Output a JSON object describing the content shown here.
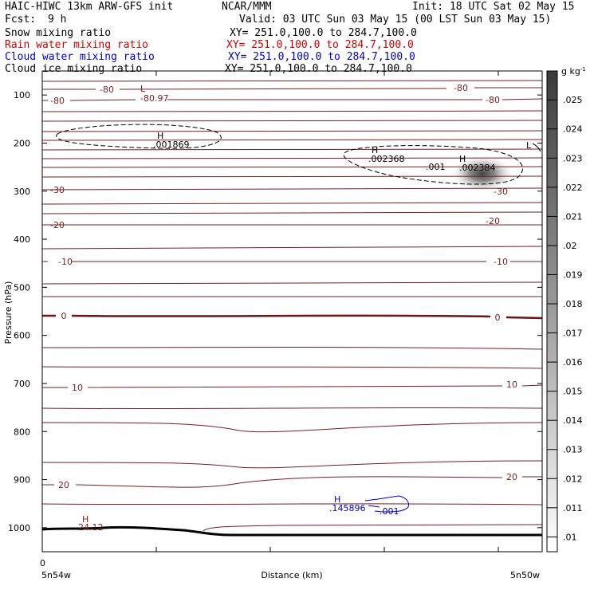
{
  "header": {
    "title_left": "HAIC-HIWC 13km ARW-GFS init",
    "title_mid": "NCAR/MMM",
    "init": "Init: 18 UTC Sat 02 May 15",
    "fcst_label": "Fcst:",
    "fcst_value": "9 h",
    "valid": "Valid: 03 UTC Sun 03 May 15 (00 LST Sun 03 May 15)",
    "fields": [
      {
        "name": "Snow mixing ratio",
        "xy": "XY= 251.0,100.0 to 284.7,100.0",
        "color": "#000000"
      },
      {
        "name": "Rain water mixing ratio",
        "xy": "XY= 251.0,100.0 to 284.7,100.0",
        "color": "#d00000"
      },
      {
        "name": "Cloud water mixing ratio",
        "xy": "XY= 251.0,100.0 to 284.7,100.0",
        "color": "#0000d0"
      },
      {
        "name": "Cloud ice mixing ratio",
        "xy": "XY= 251.0,100.0 to 284.7,100.0",
        "color": "#000000"
      }
    ]
  },
  "chart_data": {
    "type": "contour-cross-section",
    "ylabel": "Pressure (hPa)",
    "xlabel": "Distance (km)",
    "y_ticks": [
      100,
      200,
      300,
      400,
      500,
      600,
      700,
      800,
      900,
      1000
    ],
    "ylim": [
      50,
      1050
    ],
    "x_start_label": "0",
    "x_left_label": "5n54w",
    "x_right_label": "5n50w",
    "colorbar": {
      "unit": "g kg",
      "unit_exp": "-1",
      "ticks": [
        ".01",
        ".011",
        ".012",
        ".013",
        ".014",
        ".015",
        ".016",
        ".017",
        ".018",
        ".019",
        ".02",
        ".021",
        ".022",
        ".023",
        ".024",
        ".025"
      ]
    },
    "temperature_labels": [
      "-80",
      "-80",
      "-80",
      "-80",
      "-30",
      "-30",
      "-20",
      "-20",
      "-10",
      "-10",
      "0",
      "0",
      "10",
      "10",
      "20",
      "20"
    ],
    "extrema": [
      {
        "type": "L",
        "value": "-80.97"
      },
      {
        "type": "L",
        "value": ""
      },
      {
        "type": "H",
        "value": ".001869"
      },
      {
        "type": "H",
        "value": ".002368"
      },
      {
        "type": "H",
        "value": ".002384"
      },
      {
        "type": "H",
        "value": "24.12"
      },
      {
        "type": "H",
        "value": ".145896"
      }
    ],
    "contour_labels": [
      ".001",
      ".001"
    ]
  }
}
